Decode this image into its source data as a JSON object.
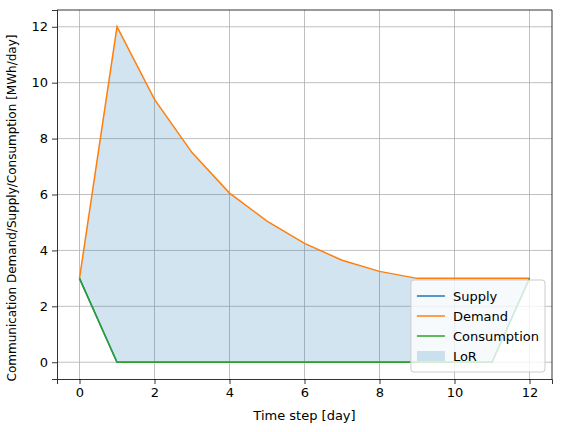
{
  "chart_data": {
    "type": "line",
    "x_label": "Time step [day]",
    "y_label": "Communication Demand/Supply/Consumption [MWh/day]",
    "x": [
      0,
      1,
      2,
      3,
      4,
      5,
      6,
      7,
      8,
      9,
      10,
      11,
      12
    ],
    "series": [
      {
        "name": "Supply",
        "color": "#1f77b4",
        "values": [
          3,
          0,
          0,
          0,
          0,
          0,
          0,
          0,
          0,
          0,
          0,
          0,
          3
        ]
      },
      {
        "name": "Demand",
        "color": "#ff7f0e",
        "values": [
          3,
          12,
          9.4,
          7.5,
          6.05,
          5.05,
          4.25,
          3.65,
          3.25,
          3.0,
          3.0,
          3.0,
          3.0
        ]
      },
      {
        "name": "Consumption",
        "color": "#2ca02c",
        "values": [
          3,
          0,
          0,
          0,
          0,
          0,
          0,
          0,
          0,
          0,
          0,
          0,
          3
        ]
      },
      {
        "name": "LoR",
        "type": "area",
        "color": "#1f77b4",
        "values": [
          3,
          12,
          9.4,
          7.5,
          6.05,
          5.05,
          4.25,
          3.65,
          3.25,
          3.0,
          3.0,
          3.0,
          3.0
        ],
        "lower": [
          3,
          0,
          0,
          0,
          0,
          0,
          0,
          0,
          0,
          0,
          0,
          0,
          3
        ]
      }
    ],
    "xlim": [
      -0.6,
      12.6
    ],
    "xticks": [
      0,
      2,
      4,
      6,
      8,
      10,
      12
    ],
    "ylim": [
      -0.6,
      12.6
    ],
    "yticks": [
      0,
      2,
      4,
      6,
      8,
      10,
      12
    ],
    "grid": true,
    "legend": "lower right"
  }
}
